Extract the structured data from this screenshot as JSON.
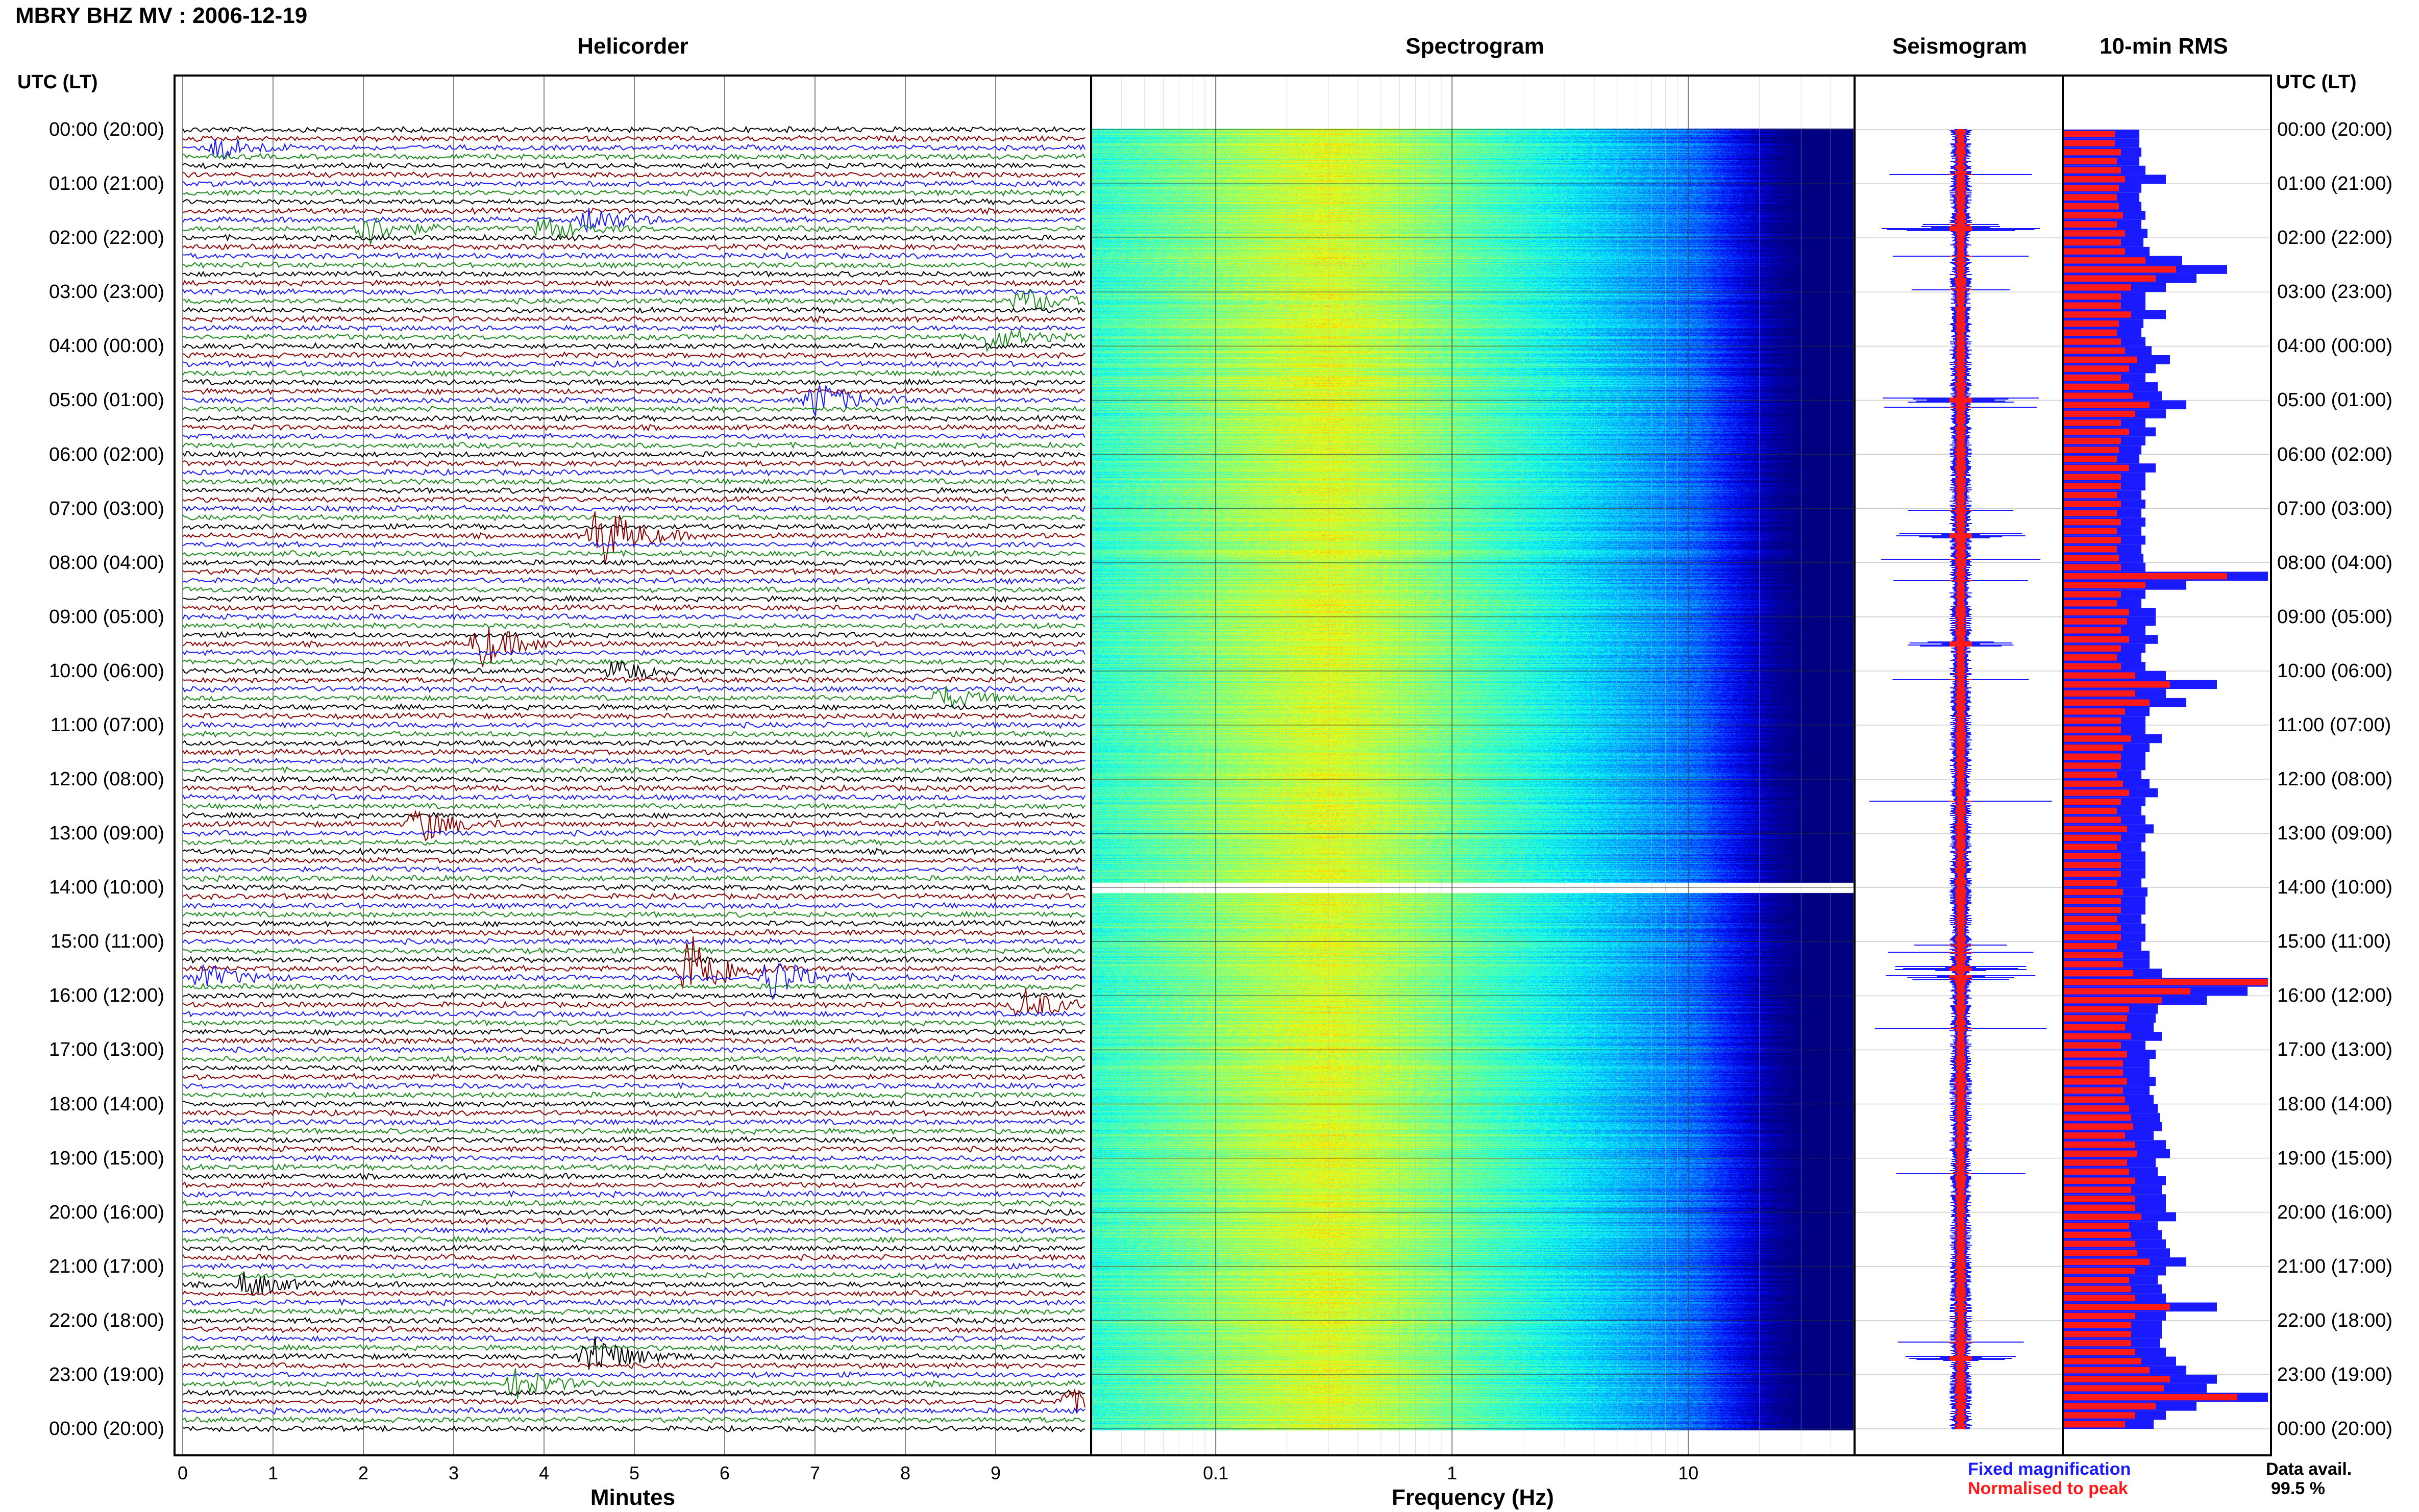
{
  "header": {
    "title": "MBRY BHZ MV : 2006-12-19",
    "utc_left": "UTC (LT)",
    "utc_right": "UTC (LT)"
  },
  "panels": {
    "helicorder": "Helicorder",
    "spectrogram": "Spectrogram",
    "seismogram": "Seismogram",
    "rms": "10-min RMS"
  },
  "time_labels": [
    "00:00 (20:00)",
    "01:00 (21:00)",
    "02:00 (22:00)",
    "03:00 (23:00)",
    "04:00 (00:00)",
    "05:00 (01:00)",
    "06:00 (02:00)",
    "07:00 (03:00)",
    "08:00 (04:00)",
    "09:00 (05:00)",
    "10:00 (06:00)",
    "11:00 (07:00)",
    "12:00 (08:00)",
    "13:00 (09:00)",
    "14:00 (10:00)",
    "15:00 (11:00)",
    "16:00 (12:00)",
    "17:00 (13:00)",
    "18:00 (14:00)",
    "19:00 (15:00)",
    "20:00 (16:00)",
    "21:00 (17:00)",
    "22:00 (18:00)",
    "23:00 (19:00)",
    "00:00 (20:00)"
  ],
  "axes": {
    "minutes_label": "Minutes",
    "minutes_ticks": [
      "0",
      "1",
      "2",
      "3",
      "4",
      "5",
      "6",
      "7",
      "8",
      "9"
    ],
    "frequency_label": "Frequency (Hz)",
    "frequency_ticks": [
      "0.1",
      "1",
      "10"
    ]
  },
  "legend": {
    "fixed": "Fixed magnification",
    "normalised": "Normalised to peak"
  },
  "availability": {
    "label": "Data avail.",
    "value": "99.5 %"
  },
  "colors": {
    "trace_cycle": [
      "#000000",
      "#8b0000",
      "#1a1aff",
      "#1a8a1a"
    ],
    "rms_fixed": "#1a1aff",
    "rms_normalised": "#ff1a1a"
  },
  "chart_data": [
    {
      "type": "line",
      "title": "Helicorder",
      "xlabel": "Minutes",
      "xlim": [
        0,
        10
      ],
      "rows_per_hour": 6,
      "hours": 24,
      "events": [
        {
          "hour": 0.33,
          "minute": 0.4,
          "amp": 0.6
        },
        {
          "hour": 1.83,
          "minute": 2.0,
          "amp": 0.9
        },
        {
          "hour": 1.83,
          "minute": 4.0,
          "amp": 0.6
        },
        {
          "hour": 1.67,
          "minute": 4.5,
          "amp": 0.7
        },
        {
          "hour": 3.17,
          "minute": 9.3,
          "amp": 0.7
        },
        {
          "hour": 3.83,
          "minute": 8.9,
          "amp": 0.7
        },
        {
          "hour": 5.0,
          "minute": 7.0,
          "amp": 1.0
        },
        {
          "hour": 7.5,
          "minute": 4.6,
          "amp": 1.8
        },
        {
          "hour": 9.5,
          "minute": 3.3,
          "amp": 1.2
        },
        {
          "hour": 10.0,
          "minute": 4.8,
          "amp": 0.6
        },
        {
          "hour": 10.5,
          "minute": 8.4,
          "amp": 0.6
        },
        {
          "hour": 12.83,
          "minute": 2.6,
          "amp": 1.0
        },
        {
          "hour": 15.5,
          "minute": 5.6,
          "amp": 2.2
        },
        {
          "hour": 15.67,
          "minute": 6.5,
          "amp": 1.2
        },
        {
          "hour": 15.67,
          "minute": 0.2,
          "amp": 0.7
        },
        {
          "hour": 16.17,
          "minute": 9.3,
          "amp": 0.9
        },
        {
          "hour": 21.33,
          "minute": 0.7,
          "amp": 0.7
        },
        {
          "hour": 22.67,
          "minute": 4.5,
          "amp": 1.3
        },
        {
          "hour": 23.1,
          "minute": 3.7,
          "amp": 0.8
        },
        {
          "hour": 23.5,
          "minute": 9.8,
          "amp": 0.6
        }
      ]
    },
    {
      "type": "heatmap",
      "title": "Spectrogram",
      "xlabel": "Frequency (Hz)",
      "xscale": "log",
      "xlim": [
        0.03,
        50
      ],
      "peak_frequency_hz": 0.3,
      "gap_hour": 14.0
    },
    {
      "type": "line",
      "title": "Seismogram",
      "series": [
        {
          "name": "Fixed magnification"
        },
        {
          "name": "Normalised to peak"
        }
      ]
    },
    {
      "type": "bar",
      "title": "10-min RMS",
      "bins": 144,
      "series": [
        {
          "name": "Fixed magnification",
          "values": [
            0.37,
            0.37,
            0.38,
            0.37,
            0.4,
            0.5,
            0.38,
            0.37,
            0.38,
            0.4,
            0.38,
            0.41,
            0.39,
            0.42,
            0.58,
            0.8,
            0.65,
            0.5,
            0.4,
            0.4,
            0.5,
            0.39,
            0.38,
            0.4,
            0.43,
            0.52,
            0.45,
            0.4,
            0.46,
            0.48,
            0.6,
            0.5,
            0.4,
            0.45,
            0.4,
            0.38,
            0.37,
            0.45,
            0.4,
            0.4,
            0.38,
            0.4,
            0.38,
            0.4,
            0.38,
            0.4,
            0.38,
            0.39,
            0.4,
            1.0,
            0.6,
            0.4,
            0.38,
            0.45,
            0.45,
            0.4,
            0.46,
            0.4,
            0.38,
            0.4,
            0.5,
            0.75,
            0.5,
            0.6,
            0.42,
            0.4,
            0.4,
            0.48,
            0.42,
            0.4,
            0.4,
            0.38,
            0.42,
            0.46,
            0.4,
            0.38,
            0.4,
            0.44,
            0.4,
            0.38,
            0.4,
            0.4,
            0.4,
            0.38,
            0.41,
            0.4,
            0.4,
            0.38,
            0.4,
            0.4,
            0.38,
            0.42,
            0.42,
            0.48,
            1.0,
            0.9,
            0.7,
            0.46,
            0.45,
            0.44,
            0.48,
            0.4,
            0.45,
            0.42,
            0.42,
            0.45,
            0.42,
            0.44,
            0.46,
            0.47,
            0.48,
            0.44,
            0.5,
            0.52,
            0.45,
            0.46,
            0.5,
            0.48,
            0.5,
            0.5,
            0.55,
            0.46,
            0.48,
            0.5,
            0.52,
            0.6,
            0.5,
            0.46,
            0.48,
            0.5,
            0.75,
            0.5,
            0.48,
            0.48,
            0.47,
            0.5,
            0.55,
            0.6,
            0.75,
            0.7,
            1.0,
            0.65,
            0.5,
            0.44
          ]
        },
        {
          "name": "Normalised to peak",
          "values": [
            0.25,
            0.25,
            0.28,
            0.26,
            0.28,
            0.3,
            0.27,
            0.26,
            0.27,
            0.29,
            0.26,
            0.3,
            0.28,
            0.3,
            0.4,
            0.55,
            0.45,
            0.33,
            0.28,
            0.28,
            0.33,
            0.27,
            0.26,
            0.28,
            0.3,
            0.36,
            0.32,
            0.28,
            0.32,
            0.34,
            0.42,
            0.35,
            0.28,
            0.32,
            0.28,
            0.27,
            0.26,
            0.32,
            0.28,
            0.28,
            0.26,
            0.28,
            0.26,
            0.28,
            0.26,
            0.28,
            0.26,
            0.27,
            0.28,
            0.8,
            0.4,
            0.28,
            0.26,
            0.32,
            0.31,
            0.28,
            0.32,
            0.28,
            0.26,
            0.28,
            0.35,
            0.52,
            0.35,
            0.42,
            0.3,
            0.28,
            0.28,
            0.33,
            0.29,
            0.28,
            0.28,
            0.26,
            0.29,
            0.32,
            0.28,
            0.26,
            0.28,
            0.31,
            0.28,
            0.26,
            0.28,
            0.28,
            0.28,
            0.26,
            0.29,
            0.28,
            0.28,
            0.26,
            0.28,
            0.28,
            0.26,
            0.29,
            0.29,
            0.34,
            1.0,
            0.62,
            0.48,
            0.32,
            0.31,
            0.3,
            0.33,
            0.28,
            0.31,
            0.29,
            0.29,
            0.31,
            0.29,
            0.3,
            0.32,
            0.33,
            0.34,
            0.3,
            0.35,
            0.36,
            0.31,
            0.32,
            0.35,
            0.33,
            0.35,
            0.35,
            0.38,
            0.32,
            0.33,
            0.35,
            0.36,
            0.42,
            0.35,
            0.32,
            0.33,
            0.35,
            0.52,
            0.35,
            0.33,
            0.33,
            0.33,
            0.35,
            0.38,
            0.42,
            0.52,
            0.49,
            0.85,
            0.45,
            0.35,
            0.3
          ]
        }
      ]
    }
  ]
}
